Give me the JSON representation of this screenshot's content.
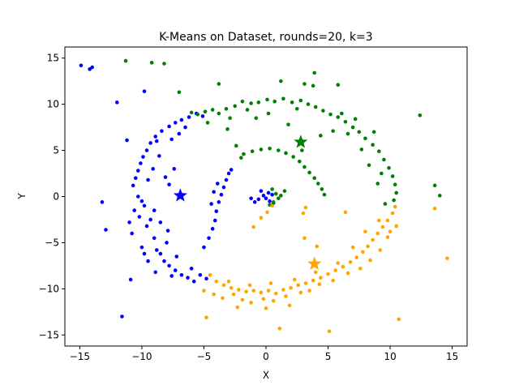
{
  "chart_data": {
    "type": "scatter",
    "title": "K-Means on Dataset, rounds=20, k=3",
    "xlabel": "X",
    "ylabel": "Y",
    "xlim": [
      -16.2,
      16.2
    ],
    "ylim": [
      -16.2,
      16.2
    ],
    "xticks": [
      -15,
      -10,
      -5,
      0,
      5,
      10,
      15
    ],
    "yticks": [
      -15,
      -10,
      -5,
      0,
      5,
      10,
      15
    ],
    "grid": false,
    "series": [
      {
        "color": "#0000ff",
        "centroid": [
          -6.9,
          0.1
        ],
        "points": [
          [
            -14.9,
            14.2
          ],
          [
            -14.2,
            13.8
          ],
          [
            -14.0,
            14.0
          ],
          [
            -12.0,
            10.2
          ],
          [
            -9.8,
            11.4
          ],
          [
            -11.2,
            6.1
          ],
          [
            -13.2,
            -0.6
          ],
          [
            -12.9,
            -3.6
          ],
          [
            -11.6,
            -13.0
          ],
          [
            -10.9,
            -9.0
          ],
          [
            -10.6,
            -1.5
          ],
          [
            -10.3,
            0.0
          ],
          [
            -10.2,
            -2.2
          ],
          [
            -10.0,
            -0.5
          ],
          [
            -9.8,
            -1.0
          ],
          [
            -9.6,
            -3.2
          ],
          [
            -9.3,
            -2.5
          ],
          [
            -9.0,
            -4.5
          ],
          [
            -8.8,
            -5.8
          ],
          [
            -8.5,
            -6.2
          ],
          [
            -8.2,
            -7.0
          ],
          [
            -7.8,
            -7.5
          ],
          [
            -7.3,
            -8.0
          ],
          [
            -6.8,
            -8.5
          ],
          [
            -6.3,
            -8.8
          ],
          [
            -5.8,
            -9.2
          ],
          [
            -5.3,
            -8.5
          ],
          [
            -4.8,
            -8.9
          ],
          [
            -10.7,
            1.2
          ],
          [
            -10.5,
            2.0
          ],
          [
            -10.3,
            2.8
          ],
          [
            -10.1,
            3.6
          ],
          [
            -9.9,
            4.3
          ],
          [
            -9.6,
            5.0
          ],
          [
            -9.3,
            5.8
          ],
          [
            -8.9,
            6.5
          ],
          [
            -8.4,
            7.1
          ],
          [
            -7.8,
            7.6
          ],
          [
            -7.3,
            8.0
          ],
          [
            -6.8,
            8.3
          ],
          [
            -6.2,
            8.6
          ],
          [
            -5.6,
            9.0
          ],
          [
            -5.1,
            8.7
          ],
          [
            -8.1,
            2.1
          ],
          [
            -7.8,
            1.3
          ],
          [
            -7.4,
            3.0
          ],
          [
            -9.5,
            1.8
          ],
          [
            -9.1,
            3.0
          ],
          [
            -8.6,
            4.4
          ],
          [
            -8.8,
            6.0
          ],
          [
            -7.6,
            6.2
          ],
          [
            -7.0,
            6.8
          ],
          [
            -6.5,
            7.5
          ],
          [
            -10.8,
            -4.0
          ],
          [
            -10.0,
            -5.5
          ],
          [
            -9.5,
            -7.0
          ],
          [
            -8.0,
            -5.0
          ],
          [
            -7.2,
            -6.5
          ],
          [
            -6.0,
            -7.8
          ],
          [
            -9.0,
            -1.5
          ],
          [
            -8.5,
            -2.8
          ],
          [
            -7.9,
            -3.7
          ],
          [
            -5.0,
            -5.5
          ],
          [
            -4.6,
            -4.5
          ],
          [
            -4.3,
            -3.5
          ],
          [
            -4.1,
            -2.6
          ],
          [
            -4.0,
            -1.6
          ],
          [
            -3.8,
            -0.6
          ],
          [
            -3.6,
            0.2
          ],
          [
            -3.4,
            1.0
          ],
          [
            -3.2,
            1.8
          ],
          [
            -3.0,
            2.5
          ],
          [
            -4.4,
            -0.8
          ],
          [
            -4.2,
            0.5
          ],
          [
            -3.9,
            1.4
          ],
          [
            -2.8,
            2.9
          ],
          [
            -0.4,
            0.6
          ],
          [
            -0.2,
            0.1
          ],
          [
            0.0,
            -0.2
          ],
          [
            0.3,
            -0.5
          ],
          [
            0.6,
            -0.7
          ],
          [
            -0.6,
            -0.3
          ],
          [
            -0.9,
            -0.6
          ],
          [
            0.2,
            0.4
          ],
          [
            0.5,
            0.2
          ],
          [
            -1.2,
            -0.2
          ],
          [
            -9.8,
            -6.2
          ],
          [
            -8.9,
            -8.2
          ],
          [
            -7.6,
            -8.6
          ],
          [
            -11.0,
            -2.8
          ]
        ]
      },
      {
        "color": "#008000",
        "centroid": [
          2.8,
          5.9
        ],
        "points": [
          [
            -11.3,
            14.7
          ],
          [
            -9.2,
            14.5
          ],
          [
            -8.2,
            14.4
          ],
          [
            -7.0,
            11.3
          ],
          [
            -3.8,
            12.2
          ],
          [
            1.2,
            12.5
          ],
          [
            3.9,
            13.4
          ],
          [
            3.1,
            12.2
          ],
          [
            3.8,
            12.0
          ],
          [
            5.8,
            12.1
          ],
          [
            -6.0,
            9.1
          ],
          [
            -5.5,
            8.9
          ],
          [
            -4.9,
            9.2
          ],
          [
            -4.3,
            9.4
          ],
          [
            -3.8,
            9.0
          ],
          [
            -3.2,
            9.5
          ],
          [
            -2.5,
            9.8
          ],
          [
            -1.9,
            10.3
          ],
          [
            -1.2,
            10.1
          ],
          [
            -0.6,
            10.2
          ],
          [
            0.1,
            10.5
          ],
          [
            0.7,
            10.3
          ],
          [
            1.4,
            10.6
          ],
          [
            2.1,
            10.2
          ],
          [
            2.8,
            10.4
          ],
          [
            3.4,
            10.0
          ],
          [
            4.0,
            9.7
          ],
          [
            4.6,
            9.3
          ],
          [
            5.2,
            8.9
          ],
          [
            5.8,
            8.6
          ],
          [
            6.4,
            8.1
          ],
          [
            7.0,
            7.5
          ],
          [
            7.5,
            7.0
          ],
          [
            8.0,
            6.3
          ],
          [
            8.6,
            5.6
          ],
          [
            9.1,
            4.9
          ],
          [
            9.5,
            4.0
          ],
          [
            9.9,
            3.1
          ],
          [
            10.2,
            2.2
          ],
          [
            10.4,
            1.3
          ],
          [
            10.5,
            0.4
          ],
          [
            10.3,
            -0.4
          ],
          [
            -4.7,
            8.0
          ],
          [
            -3.1,
            7.3
          ],
          [
            -2.4,
            5.5
          ],
          [
            -1.8,
            4.6
          ],
          [
            -1.1,
            4.9
          ],
          [
            -0.4,
            5.1
          ],
          [
            0.3,
            5.2
          ],
          [
            1.0,
            5.0
          ],
          [
            1.6,
            4.7
          ],
          [
            2.2,
            4.3
          ],
          [
            2.7,
            3.8
          ],
          [
            3.1,
            3.2
          ],
          [
            3.5,
            2.6
          ],
          [
            3.9,
            2.0
          ],
          [
            4.2,
            1.4
          ],
          [
            4.5,
            0.8
          ],
          [
            4.7,
            0.2
          ],
          [
            -2.0,
            4.2
          ],
          [
            0.5,
            0.8
          ],
          [
            0.8,
            0.3
          ],
          [
            1.0,
            -0.2
          ],
          [
            0.6,
            -0.6
          ],
          [
            0.3,
            -0.9
          ],
          [
            1.5,
            0.6
          ],
          [
            1.2,
            0.1
          ],
          [
            -0.8,
            8.5
          ],
          [
            0.2,
            9.0
          ],
          [
            2.5,
            9.5
          ],
          [
            6.6,
            6.8
          ],
          [
            7.7,
            5.1
          ],
          [
            8.3,
            3.4
          ],
          [
            9.0,
            1.4
          ],
          [
            9.6,
            -0.8
          ],
          [
            12.4,
            8.8
          ],
          [
            13.6,
            1.2
          ],
          [
            14.0,
            0.1
          ],
          [
            2.9,
            5.0
          ],
          [
            1.8,
            7.8
          ],
          [
            -2.9,
            8.5
          ],
          [
            -1.5,
            9.4
          ],
          [
            4.4,
            6.6
          ],
          [
            5.4,
            7.1
          ],
          [
            6.1,
            9.0
          ],
          [
            7.2,
            8.4
          ],
          [
            8.7,
            7.0
          ],
          [
            9.3,
            2.5
          ]
        ]
      },
      {
        "color": "#ffa500",
        "centroid": [
          3.9,
          -7.3
        ],
        "points": [
          [
            -4.8,
            -13.1
          ],
          [
            1.1,
            -14.3
          ],
          [
            5.1,
            -14.6
          ],
          [
            10.7,
            -13.3
          ],
          [
            14.6,
            -6.7
          ],
          [
            13.6,
            -1.3
          ],
          [
            6.4,
            -1.7
          ],
          [
            3.2,
            -1.2
          ],
          [
            3.0,
            -1.8
          ],
          [
            4.1,
            -5.4
          ],
          [
            3.1,
            -4.5
          ],
          [
            0.5,
            -1.0
          ],
          [
            0.1,
            -1.7
          ],
          [
            -0.4,
            -2.3
          ],
          [
            -1.0,
            -3.3
          ],
          [
            -4.5,
            -8.5
          ],
          [
            -4.0,
            -9.2
          ],
          [
            -3.4,
            -9.6
          ],
          [
            -2.8,
            -9.9
          ],
          [
            -2.2,
            -10.1
          ],
          [
            -1.6,
            -10.3
          ],
          [
            -1.0,
            -10.2
          ],
          [
            -0.4,
            -10.4
          ],
          [
            0.2,
            -10.2
          ],
          [
            0.8,
            -10.5
          ],
          [
            1.4,
            -10.1
          ],
          [
            2.0,
            -9.9
          ],
          [
            2.6,
            -9.6
          ],
          [
            3.2,
            -9.4
          ],
          [
            3.8,
            -9.1
          ],
          [
            4.4,
            -8.8
          ],
          [
            5.0,
            -8.4
          ],
          [
            5.6,
            -8.0
          ],
          [
            6.2,
            -7.6
          ],
          [
            6.8,
            -7.1
          ],
          [
            7.3,
            -6.6
          ],
          [
            7.8,
            -6.0
          ],
          [
            8.2,
            -5.4
          ],
          [
            8.6,
            -4.7
          ],
          [
            9.0,
            -4.0
          ],
          [
            9.4,
            -3.3
          ],
          [
            9.8,
            -2.6
          ],
          [
            10.2,
            -1.8
          ],
          [
            10.4,
            -1.1
          ],
          [
            -5.0,
            -10.2
          ],
          [
            -4.2,
            -10.6
          ],
          [
            -3.5,
            -11.0
          ],
          [
            -2.6,
            -10.6
          ],
          [
            -1.9,
            -11.2
          ],
          [
            -1.2,
            -11.5
          ],
          [
            -0.2,
            -11.1
          ],
          [
            0.6,
            -11.3
          ],
          [
            1.6,
            -10.8
          ],
          [
            2.8,
            -10.4
          ],
          [
            4.3,
            -9.5
          ],
          [
            5.4,
            -9.1
          ],
          [
            6.6,
            -8.3
          ],
          [
            7.6,
            -7.8
          ],
          [
            8.4,
            -6.9
          ],
          [
            9.2,
            -5.8
          ],
          [
            9.8,
            -4.4
          ],
          [
            10.5,
            -3.2
          ],
          [
            -3.0,
            -9.2
          ],
          [
            -1.3,
            -9.6
          ],
          [
            0.4,
            -9.4
          ],
          [
            2.3,
            -9.0
          ],
          [
            4.0,
            -8.2
          ],
          [
            5.8,
            -7.2
          ],
          [
            7.0,
            -5.5
          ],
          [
            8.0,
            -3.8
          ],
          [
            9.1,
            -2.6
          ],
          [
            10.0,
            -3.8
          ],
          [
            -2.3,
            -12.0
          ],
          [
            0.0,
            -12.1
          ],
          [
            1.9,
            -11.8
          ],
          [
            3.5,
            -10.2
          ]
        ]
      }
    ]
  }
}
